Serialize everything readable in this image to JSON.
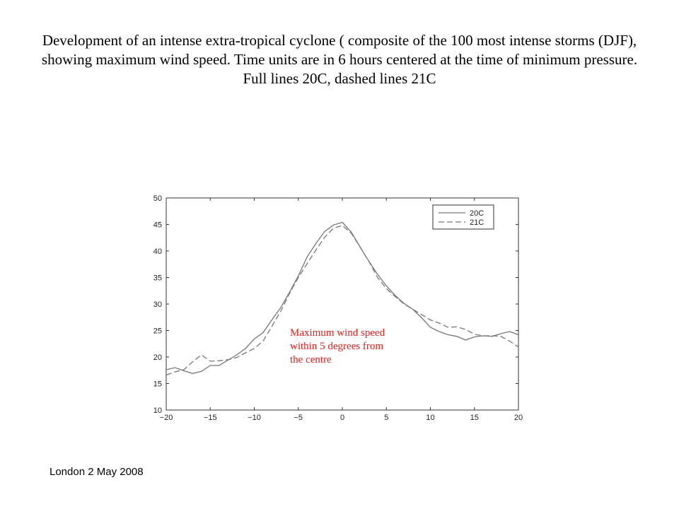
{
  "slide": {
    "title": "Development of an intense extra-tropical cyclone ( composite of the 100 most intense storms (DJF), showing maximum wind speed. Time units are in 6 hours centered at the time of minimum pressure. Full lines 20C, dashed lines 21C",
    "annotation": "Maximum wind speed within 5 degrees from the centre",
    "footer": "London 2 May 2008"
  },
  "chart_data": {
    "type": "line",
    "title": "",
    "xlabel": "",
    "ylabel": "",
    "xlim": [
      -20,
      20
    ],
    "ylim": [
      10,
      50
    ],
    "xticks": [
      -20,
      -15,
      -10,
      -5,
      0,
      5,
      10,
      15,
      20
    ],
    "yticks": [
      10,
      15,
      20,
      25,
      30,
      35,
      40,
      45,
      50
    ],
    "grid": false,
    "legend_position": "top-right",
    "x": [
      -20,
      -19,
      -18,
      -17,
      -16,
      -15,
      -14,
      -13,
      -12,
      -11,
      -10,
      -9,
      -8,
      -7,
      -6,
      -5,
      -4,
      -3,
      -2,
      -1,
      0,
      1,
      2,
      3,
      4,
      5,
      6,
      7,
      8,
      9,
      10,
      11,
      12,
      13,
      14,
      15,
      16,
      17,
      18,
      19,
      20
    ],
    "series": [
      {
        "name": "20C",
        "style": "solid",
        "color": "#777777",
        "values": [
          17.6,
          18.0,
          17.4,
          16.9,
          17.3,
          18.4,
          18.4,
          19.4,
          20.4,
          21.6,
          23.4,
          24.6,
          27.0,
          29.3,
          32.2,
          35.3,
          38.9,
          41.4,
          43.7,
          44.9,
          45.4,
          43.6,
          40.8,
          38.1,
          35.6,
          33.4,
          31.6,
          30.1,
          29.0,
          27.4,
          25.6,
          24.8,
          24.2,
          23.9,
          23.2,
          23.8,
          24.0,
          23.9,
          24.4,
          24.8,
          24.2
        ]
      },
      {
        "name": "21C",
        "style": "dashed",
        "color": "#777777",
        "values": [
          16.6,
          17.2,
          17.6,
          19.1,
          20.4,
          19.2,
          19.3,
          19.5,
          19.9,
          20.8,
          21.6,
          23.0,
          25.8,
          28.6,
          32.0,
          35.0,
          37.6,
          40.2,
          42.6,
          44.3,
          44.8,
          43.4,
          40.8,
          38.1,
          35.0,
          32.9,
          31.4,
          30.0,
          29.0,
          28.0,
          27.0,
          26.4,
          25.6,
          25.7,
          25.2,
          24.3,
          24.0,
          24.0,
          23.9,
          23.0,
          21.9
        ]
      }
    ]
  }
}
